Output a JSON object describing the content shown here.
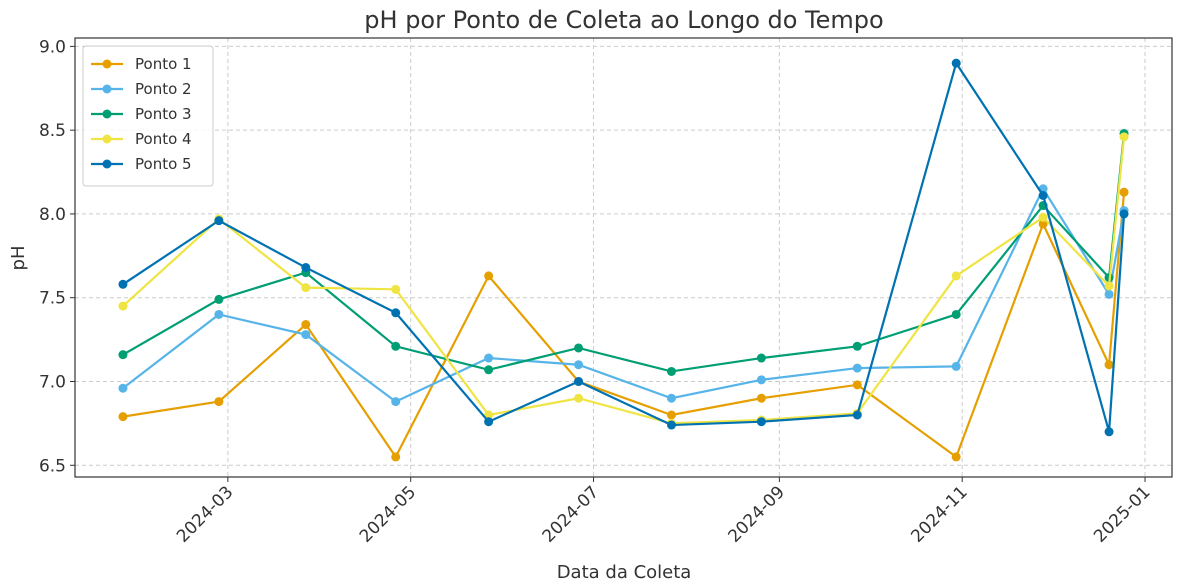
{
  "chart_data": {
    "type": "line",
    "title": "pH por Ponto de Coleta ao Longo do Tempo",
    "xlabel": "Data da Coleta",
    "ylabel": "pH",
    "x": [
      "2024-01-26",
      "2024-02-27",
      "2024-03-27",
      "2024-04-26",
      "2024-05-27",
      "2024-06-26",
      "2024-07-27",
      "2024-08-26",
      "2024-09-27",
      "2024-10-30",
      "2024-11-28",
      "2024-12-20",
      "2024-12-25"
    ],
    "series": [
      {
        "name": "Ponto 1",
        "color": "#E69F00",
        "values": [
          6.79,
          6.88,
          7.34,
          6.55,
          7.63,
          7.0,
          6.8,
          6.9,
          6.98,
          6.55,
          7.94,
          7.1,
          8.13
        ]
      },
      {
        "name": "Ponto 2",
        "color": "#56B4E9",
        "values": [
          6.96,
          7.4,
          7.28,
          6.88,
          7.14,
          7.1,
          6.9,
          7.01,
          7.08,
          7.09,
          8.15,
          7.52,
          8.02
        ]
      },
      {
        "name": "Ponto 3",
        "color": "#009E73",
        "values": [
          7.16,
          7.49,
          7.65,
          7.21,
          7.07,
          7.2,
          7.06,
          7.14,
          7.21,
          7.4,
          8.05,
          7.62,
          8.48
        ]
      },
      {
        "name": "Ponto 4",
        "color": "#F0E442",
        "values": [
          7.45,
          7.97,
          7.56,
          7.55,
          6.8,
          6.9,
          6.75,
          6.77,
          6.81,
          7.63,
          7.98,
          7.57,
          8.46
        ]
      },
      {
        "name": "Ponto 5",
        "color": "#0072B2",
        "values": [
          7.58,
          7.96,
          7.68,
          7.41,
          6.76,
          7.0,
          6.74,
          6.76,
          6.8,
          8.9,
          8.11,
          6.7,
          8.0
        ]
      }
    ],
    "xlim": [
      "2024-01-10",
      "2025-01-10"
    ],
    "xticks": [
      {
        "value": "2024-03-01",
        "label": "2024-03"
      },
      {
        "value": "2024-05-01",
        "label": "2024-05"
      },
      {
        "value": "2024-07-01",
        "label": "2024-07"
      },
      {
        "value": "2024-09-01",
        "label": "2024-09"
      },
      {
        "value": "2024-11-01",
        "label": "2024-11"
      },
      {
        "value": "2025-01-01",
        "label": "2025-01"
      }
    ],
    "ylim": [
      6.43,
      9.05
    ],
    "yticks": [
      {
        "value": 6.5,
        "label": "6.5"
      },
      {
        "value": 7,
        "label": "7.0"
      },
      {
        "value": 7.5,
        "label": "7.5"
      },
      {
        "value": 8,
        "label": "8.0"
      },
      {
        "value": 8.5,
        "label": "8.5"
      },
      {
        "value": 9,
        "label": "9.0"
      }
    ],
    "grid": true,
    "legend": "upper left"
  }
}
